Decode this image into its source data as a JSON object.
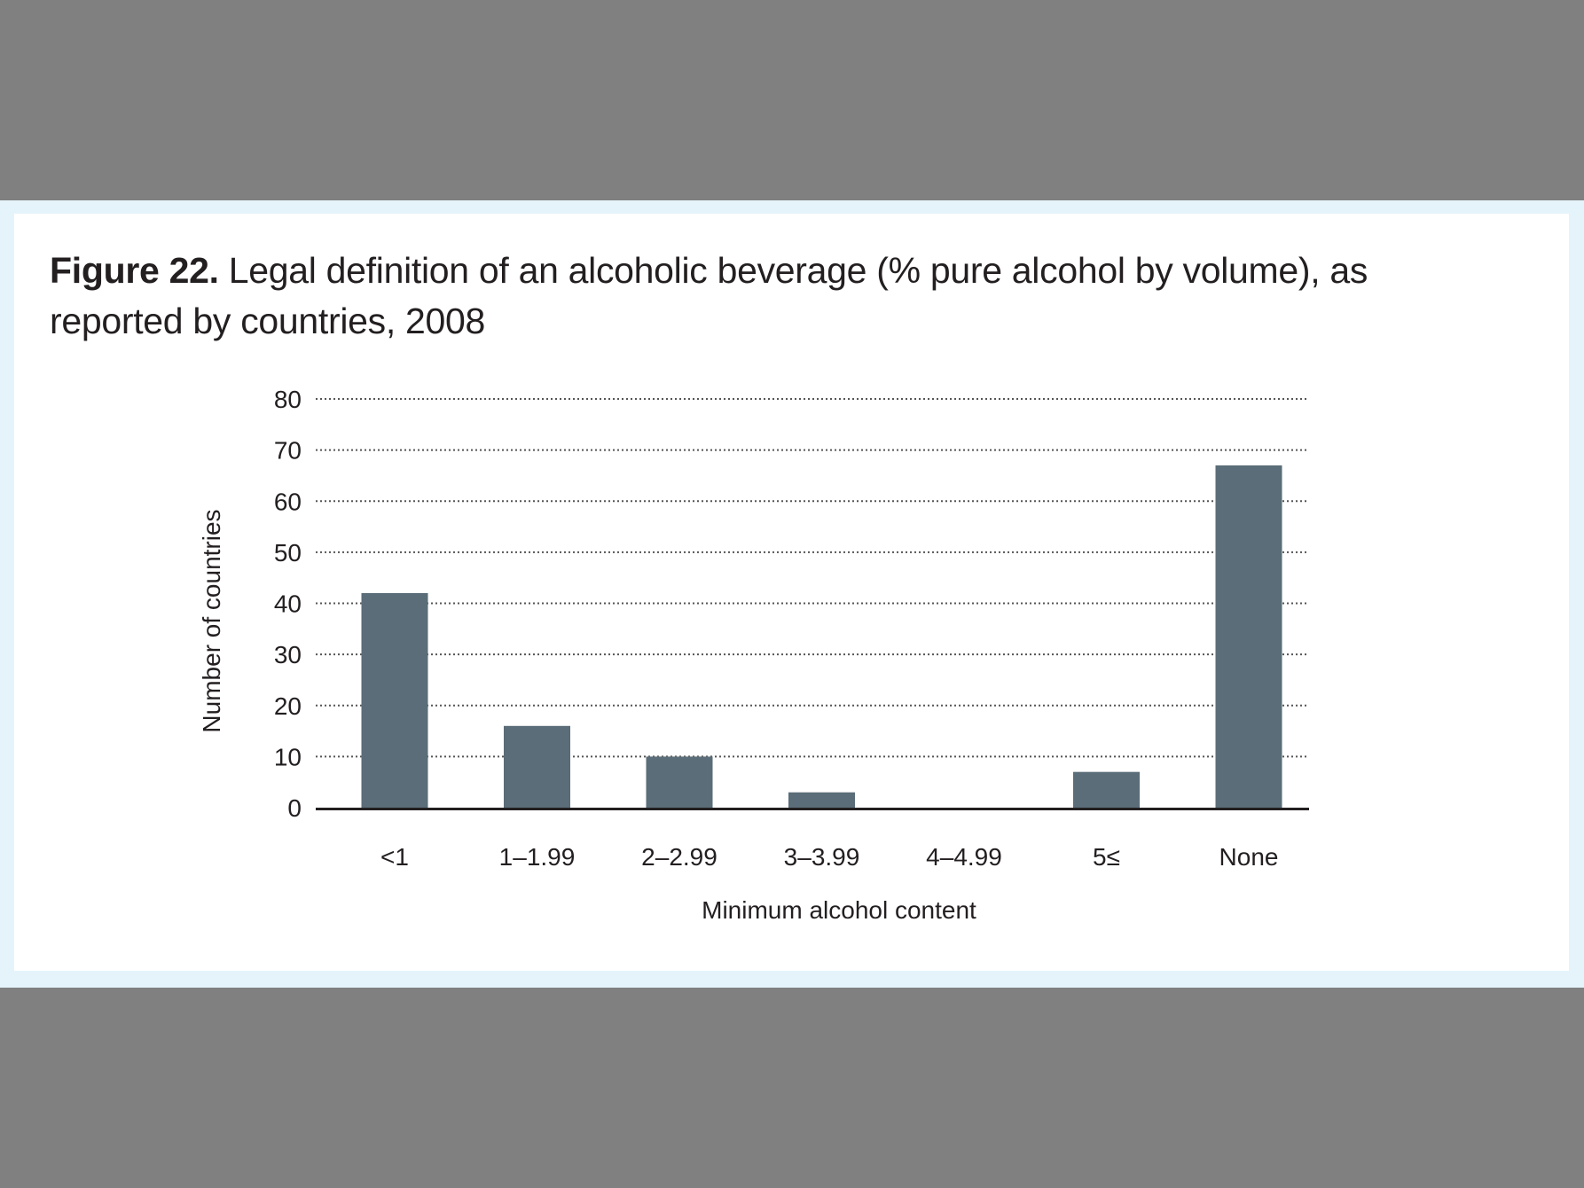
{
  "figure": {
    "number_label": "Figure 22.",
    "title": "Legal definition of an alcoholic beverage (% pure alcohol by volume), as reported by countries, 2008"
  },
  "colors": {
    "page_background": "#808080",
    "band": "#e5f4fb",
    "card": "#ffffff",
    "bar": "#5a6d78",
    "gridline": "#555555",
    "axis": "#231f20",
    "text": "#231f20"
  },
  "chart_data": {
    "type": "bar",
    "categories": [
      "<1",
      "1–1.99",
      "2–2.99",
      "3–3.99",
      "4–4.99",
      "5≤",
      "None"
    ],
    "values": [
      42,
      16,
      10,
      3,
      0,
      7,
      67
    ],
    "xlabel": "Minimum alcohol content",
    "ylabel": "Number of countries",
    "ylim": [
      0,
      80
    ],
    "yticks": [
      0,
      10,
      20,
      30,
      40,
      50,
      60,
      70,
      80
    ],
    "grid": true,
    "grid_style": "dotted",
    "legend": "none"
  }
}
